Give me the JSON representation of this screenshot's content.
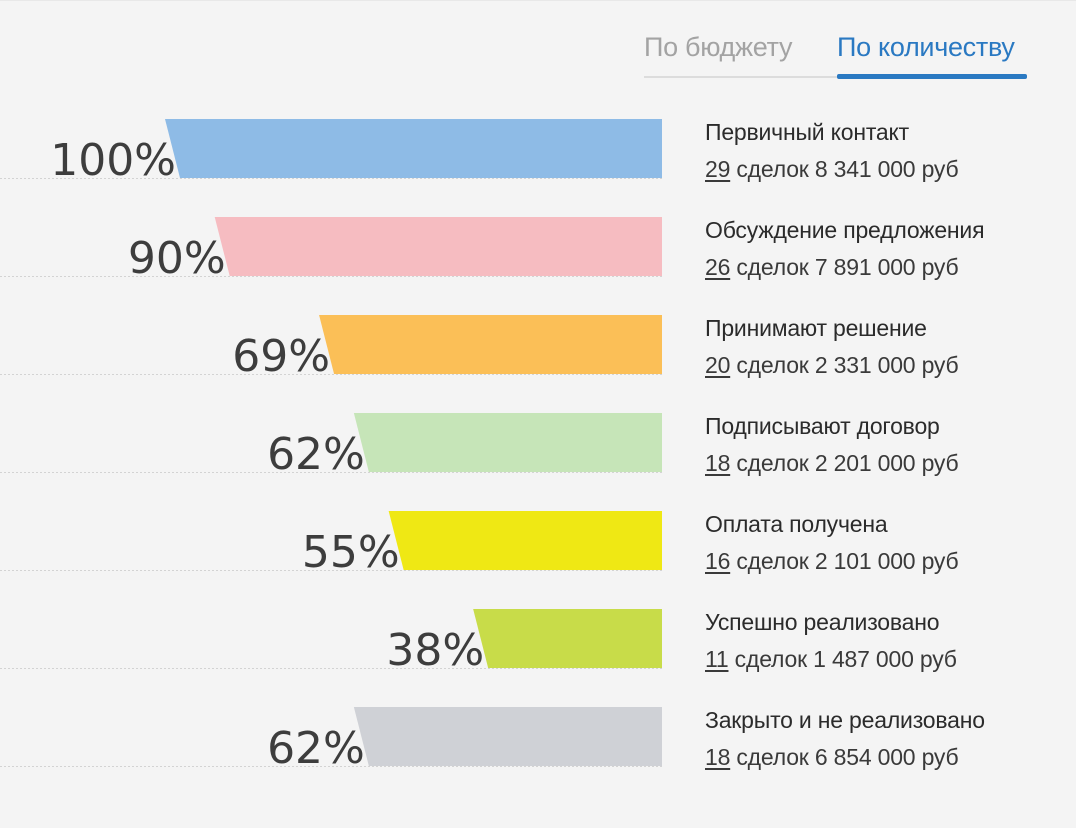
{
  "tabs": [
    {
      "label": "По бюджету",
      "active": false
    },
    {
      "label": "По количеству",
      "active": true
    }
  ],
  "colors": {
    "accent": "#2a79c2"
  },
  "chart_data": {
    "type": "bar",
    "orientation": "horizontal",
    "unit": "%",
    "categories": [
      "Первичный контакт",
      "Обсуждение предложения",
      "Принимают решение",
      "Подписывают договор",
      "Оплата получена",
      "Успешно реализовано",
      "Закрыто и не реализовано"
    ],
    "values": [
      100,
      90,
      69,
      62,
      55,
      38,
      62
    ],
    "value_labels": [
      "100%",
      "90%",
      "69%",
      "62%",
      "55%",
      "38%",
      "62%"
    ],
    "deals": [
      "29",
      "26",
      "20",
      "18",
      "16",
      "11",
      "18"
    ],
    "deals_word": "сделок",
    "budgets": [
      "8 341 000 руб",
      "7 891 000 руб",
      "2 331 000 руб",
      "2 201 000 руб",
      "2 101 000 руб",
      "1 487 000 руб",
      "6 854 000 руб"
    ],
    "colors": [
      "#8ebbe6",
      "#f6bcc1",
      "#fbbf57",
      "#c6e5b8",
      "#efe814",
      "#c8dc49",
      "#cfd1d6"
    ],
    "xlim": [
      0,
      100
    ],
    "legend": "right"
  }
}
